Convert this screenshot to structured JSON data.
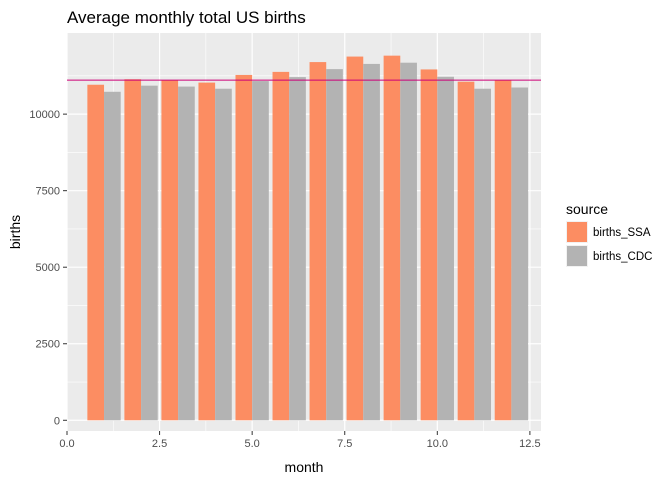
{
  "chart_data": {
    "type": "bar",
    "title": "Average monthly total US births",
    "xlabel": "month",
    "ylabel": "births",
    "x": [
      1,
      2,
      3,
      4,
      5,
      6,
      7,
      8,
      9,
      10,
      11,
      12
    ],
    "series": [
      {
        "name": "births_SSA",
        "color": "#fc8d62",
        "values": [
          10960,
          11140,
          11110,
          11030,
          11280,
          11380,
          11700,
          11880,
          11910,
          11460,
          11060,
          11110
        ]
      },
      {
        "name": "births_CDC",
        "color": "#b3b3b3",
        "values": [
          10730,
          10930,
          10900,
          10830,
          11080,
          11210,
          11470,
          11640,
          11680,
          11220,
          10830,
          10870
        ]
      }
    ],
    "reference_line": {
      "y": 11110,
      "color": "#cc0077"
    },
    "xlim": [
      0,
      12.8
    ],
    "ylim": [
      -350,
      12650
    ],
    "x_ticks": [
      0,
      2.5,
      5,
      7.5,
      10,
      12.5
    ],
    "x_tick_labels": [
      "0.0",
      "2.5",
      "5.0",
      "7.5",
      "10.0",
      "12.5"
    ],
    "y_ticks": [
      0,
      2500,
      5000,
      7500,
      10000
    ],
    "y_tick_labels": [
      "0",
      "2500",
      "5000",
      "7500",
      "10000"
    ],
    "grid": true,
    "legend": {
      "title": "source",
      "position": "right"
    }
  }
}
